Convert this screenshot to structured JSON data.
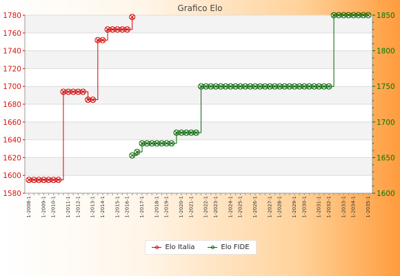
{
  "chart_data": {
    "type": "line",
    "title": "Grafico Elo",
    "xlabel": "",
    "ylabel": "",
    "grid": true,
    "legend_position": "bottom-center",
    "x_count": 70,
    "x_tick_labels": [
      "1-2008-1",
      "1-2009-1",
      "1-2010-1",
      "1-2011-1",
      "1-2012-1",
      "1-2013-1",
      "1-2014-1",
      "1-2015-1",
      "1-2016-1",
      "1-2017-1",
      "1-2018-1",
      "1-2019-1",
      "1-2020-1",
      "1-2021-1",
      "1-2022-1",
      "1-2023-1",
      "1-2024-1",
      "1-2025-1",
      "1-2026-1",
      "1-2027-1",
      "1-2028-1",
      "1-2029-1",
      "1-2030-1",
      "1-2031-1",
      "1-2032-1",
      "1-2033-1",
      "1-2034-1",
      "1-2035-1"
    ],
    "y_left": {
      "min": 1580,
      "max": 1780,
      "ticks": [
        1580,
        1600,
        1620,
        1640,
        1660,
        1680,
        1700,
        1720,
        1740,
        1760,
        1780
      ],
      "color": "#d40000"
    },
    "y_right": {
      "min": 1600,
      "max": 1850,
      "ticks": [
        1600,
        1650,
        1700,
        1750,
        1800,
        1850
      ],
      "color": "#006400"
    },
    "series": [
      {
        "name": "Elo Italia",
        "axis": "left",
        "color": "#d40000",
        "points": [
          [
            0,
            1595
          ],
          [
            1,
            1595
          ],
          [
            2,
            1595
          ],
          [
            3,
            1595
          ],
          [
            4,
            1595
          ],
          [
            5,
            1595
          ],
          [
            6,
            1595
          ],
          [
            7,
            1694
          ],
          [
            8,
            1694
          ],
          [
            9,
            1694
          ],
          [
            10,
            1694
          ],
          [
            11,
            1694
          ],
          [
            12,
            1685
          ],
          [
            13,
            1685
          ],
          [
            14,
            1752
          ],
          [
            15,
            1752
          ],
          [
            16,
            1764
          ],
          [
            17,
            1764
          ],
          [
            18,
            1764
          ],
          [
            19,
            1764
          ],
          [
            20,
            1764
          ],
          [
            21,
            1778
          ]
        ]
      },
      {
        "name": "Elo FIDE",
        "axis": "right",
        "color": "#006400",
        "points": [
          [
            21,
            1653
          ],
          [
            22,
            1658
          ],
          [
            23,
            1670
          ],
          [
            24,
            1670
          ],
          [
            25,
            1670
          ],
          [
            26,
            1670
          ],
          [
            27,
            1670
          ],
          [
            28,
            1670
          ],
          [
            29,
            1670
          ],
          [
            30,
            1685
          ],
          [
            31,
            1685
          ],
          [
            32,
            1685
          ],
          [
            33,
            1685
          ],
          [
            34,
            1685
          ],
          [
            35,
            1750
          ],
          [
            36,
            1750
          ],
          [
            37,
            1750
          ],
          [
            38,
            1750
          ],
          [
            39,
            1750
          ],
          [
            40,
            1750
          ],
          [
            41,
            1750
          ],
          [
            42,
            1750
          ],
          [
            43,
            1750
          ],
          [
            44,
            1750
          ],
          [
            45,
            1750
          ],
          [
            46,
            1750
          ],
          [
            47,
            1750
          ],
          [
            48,
            1750
          ],
          [
            49,
            1750
          ],
          [
            50,
            1750
          ],
          [
            51,
            1750
          ],
          [
            52,
            1750
          ],
          [
            53,
            1750
          ],
          [
            54,
            1750
          ],
          [
            55,
            1750
          ],
          [
            56,
            1750
          ],
          [
            57,
            1750
          ],
          [
            58,
            1750
          ],
          [
            59,
            1750
          ],
          [
            60,
            1750
          ],
          [
            61,
            1750
          ],
          [
            62,
            1850
          ],
          [
            63,
            1850
          ],
          [
            64,
            1850
          ],
          [
            65,
            1850
          ],
          [
            66,
            1850
          ],
          [
            67,
            1850
          ],
          [
            68,
            1850
          ],
          [
            69,
            1850
          ]
        ]
      }
    ]
  }
}
